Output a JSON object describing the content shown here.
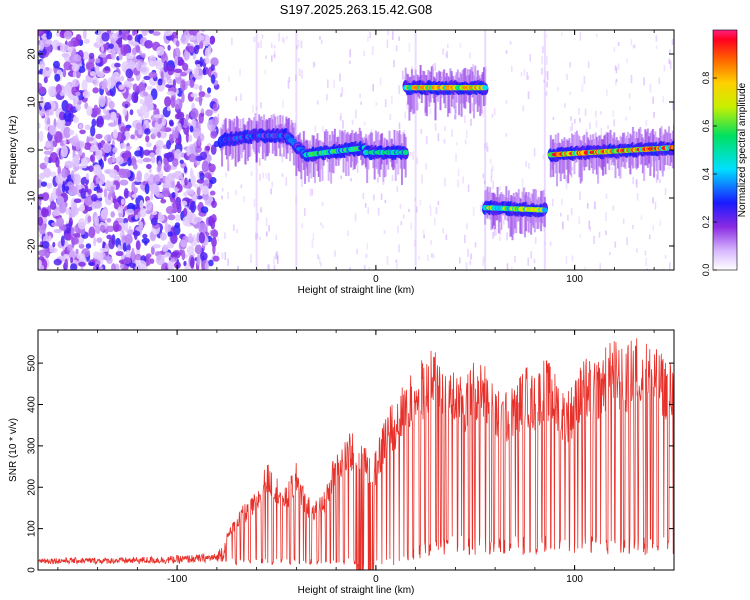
{
  "figure_title": "S197.2025.263.15.42.G08",
  "chart_data": [
    {
      "type": "heatmap",
      "xlabel": "Height of straight line (km)",
      "ylabel": "Frequency (Hz)",
      "xlim": [
        -170,
        150
      ],
      "ylim": [
        -25,
        25
      ],
      "xticks": [
        -100,
        0,
        100
      ],
      "yticks": [
        -20,
        -10,
        0,
        10,
        20
      ],
      "colorbar": {
        "label": "Normalized spectral amplitude",
        "range": [
          0,
          1
        ],
        "ticks": [
          "0.0",
          "0.2",
          "0.4",
          "0.6",
          "0.8"
        ]
      },
      "tone_segments": [
        {
          "x_start": -78,
          "x_end": -60,
          "freq_start": 2,
          "freq_end": 3,
          "max_amplitude": 0.35
        },
        {
          "x_start": -60,
          "x_end": -45,
          "freq_start": 3,
          "freq_end": 3,
          "max_amplitude": 0.35
        },
        {
          "x_start": -45,
          "x_end": -35,
          "freq_start": 3,
          "freq_end": -1,
          "max_amplitude": 0.35
        },
        {
          "x_start": -35,
          "x_end": -5,
          "freq_start": -1,
          "freq_end": 0.5,
          "max_amplitude": 0.6
        },
        {
          "x_start": -5,
          "x_end": 15,
          "freq_start": -0.5,
          "freq_end": -0.5,
          "max_amplitude": 0.55
        },
        {
          "x_start": 15,
          "x_end": 55,
          "freq_start": 13,
          "freq_end": 13,
          "max_amplitude": 0.85
        },
        {
          "x_start": 55,
          "x_end": 85,
          "freq_start": -12,
          "freq_end": -12.5,
          "max_amplitude": 0.75
        },
        {
          "x_start": 88,
          "x_end": 150,
          "freq_start": -1,
          "freq_end": 0.5,
          "max_amplitude": 0.95
        }
      ]
    },
    {
      "type": "line",
      "xlabel": "Height of straight line (km)",
      "ylabel": "SNR (10 * v/v)",
      "xlim": [
        -170,
        150
      ],
      "ylim": [
        0,
        580
      ],
      "xticks": [
        -100,
        0,
        100
      ],
      "yticks": [
        0,
        100,
        200,
        300,
        400,
        500
      ],
      "series": [
        {
          "name": "SNR",
          "color": "#e8302a",
          "envelope_x": [
            -170,
            -130,
            -100,
            -80,
            -70,
            -60,
            -55,
            -50,
            -45,
            -40,
            -35,
            -30,
            -25,
            -20,
            -15,
            -10,
            -5,
            0,
            5,
            10,
            15,
            20,
            25,
            30,
            35,
            40,
            45,
            50,
            55,
            60,
            65,
            70,
            75,
            80,
            85,
            90,
            95,
            100,
            105,
            110,
            115,
            120,
            125,
            130,
            135,
            140,
            145,
            150
          ],
          "peak_values": [
            30,
            30,
            35,
            40,
            140,
            190,
            260,
            230,
            200,
            260,
            180,
            170,
            200,
            300,
            320,
            350,
            300,
            290,
            380,
            420,
            460,
            500,
            520,
            540,
            500,
            480,
            460,
            520,
            500,
            440,
            430,
            450,
            500,
            470,
            520,
            480,
            430,
            460,
            520,
            500,
            540,
            560,
            530,
            570,
            560,
            540,
            520,
            500
          ],
          "trough_values": [
            15,
            15,
            15,
            20,
            20,
            20,
            20,
            20,
            20,
            20,
            20,
            20,
            20,
            20,
            20,
            20,
            20,
            20,
            20,
            20,
            30,
            40,
            50,
            55,
            60,
            60,
            60,
            60,
            60,
            60,
            60,
            60,
            60,
            60,
            60,
            60,
            60,
            60,
            60,
            60,
            60,
            60,
            60,
            60,
            60,
            60,
            60,
            60
          ]
        }
      ]
    }
  ]
}
